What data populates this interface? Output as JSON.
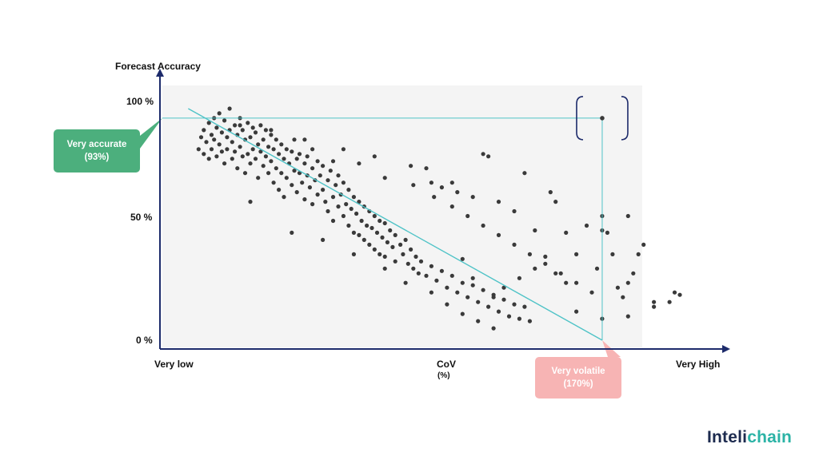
{
  "chart_data": {
    "type": "scatter",
    "title": "",
    "ylabel": "Forecast Accuracy",
    "xlabel": "CoV",
    "xlabel_unit": "(%)",
    "x_tick_labels": [
      "Very low",
      "Very High"
    ],
    "y_tick_labels": [
      "100 %",
      "50 %",
      "0 %"
    ],
    "xlim": [
      0,
      200
    ],
    "ylim": [
      0,
      100
    ],
    "grid": false,
    "trend_line": {
      "from": [
        10,
        97
      ],
      "to": [
        170,
        0
      ]
    },
    "reference_lines": {
      "accuracy": 93,
      "cov": 170
    },
    "highlight_point": {
      "x": 170,
      "y": 93
    },
    "series": [
      {
        "points": [
          [
            14,
            80
          ],
          [
            15,
            85
          ],
          [
            16,
            78
          ],
          [
            16,
            88
          ],
          [
            17,
            83
          ],
          [
            18,
            76
          ],
          [
            18,
            91
          ],
          [
            19,
            86
          ],
          [
            19,
            80
          ],
          [
            20,
            93
          ],
          [
            20,
            84
          ],
          [
            21,
            77
          ],
          [
            21,
            89
          ],
          [
            22,
            82
          ],
          [
            22,
            95
          ],
          [
            23,
            79
          ],
          [
            23,
            87
          ],
          [
            24,
            74
          ],
          [
            24,
            92
          ],
          [
            25,
            85
          ],
          [
            25,
            80
          ],
          [
            26,
            97
          ],
          [
            26,
            88
          ],
          [
            27,
            76
          ],
          [
            27,
            83
          ],
          [
            28,
            90
          ],
          [
            28,
            79
          ],
          [
            29,
            86
          ],
          [
            29,
            72
          ],
          [
            30,
            93
          ],
          [
            30,
            81
          ],
          [
            31,
            77
          ],
          [
            31,
            88
          ],
          [
            32,
            84
          ],
          [
            32,
            70
          ],
          [
            33,
            91
          ],
          [
            33,
            78
          ],
          [
            34,
            85
          ],
          [
            34,
            74
          ],
          [
            35,
            89
          ],
          [
            35,
            80
          ],
          [
            36,
            76
          ],
          [
            36,
            87
          ],
          [
            37,
            82
          ],
          [
            37,
            68
          ],
          [
            38,
            90
          ],
          [
            38,
            79
          ],
          [
            39,
            84
          ],
          [
            39,
            73
          ],
          [
            40,
            88
          ],
          [
            40,
            77
          ],
          [
            41,
            81
          ],
          [
            41,
            70
          ],
          [
            42,
            86
          ],
          [
            42,
            75
          ],
          [
            43,
            80
          ],
          [
            43,
            66
          ],
          [
            44,
            84
          ],
          [
            44,
            72
          ],
          [
            45,
            78
          ],
          [
            45,
            63
          ],
          [
            46,
            82
          ],
          [
            46,
            70
          ],
          [
            47,
            76
          ],
          [
            47,
            60
          ],
          [
            48,
            80
          ],
          [
            48,
            68
          ],
          [
            49,
            74
          ],
          [
            50,
            79
          ],
          [
            50,
            65
          ],
          [
            51,
            71
          ],
          [
            51,
            84
          ],
          [
            52,
            76
          ],
          [
            52,
            62
          ],
          [
            53,
            70
          ],
          [
            53,
            78
          ],
          [
            54,
            66
          ],
          [
            55,
            74
          ],
          [
            55,
            59
          ],
          [
            56,
            69
          ],
          [
            56,
            77
          ],
          [
            57,
            64
          ],
          [
            58,
            72
          ],
          [
            58,
            57
          ],
          [
            59,
            67
          ],
          [
            60,
            75
          ],
          [
            60,
            61
          ],
          [
            61,
            69
          ],
          [
            62,
            63
          ],
          [
            62,
            73
          ],
          [
            63,
            58
          ],
          [
            64,
            67
          ],
          [
            64,
            54
          ],
          [
            65,
            71
          ],
          [
            66,
            60
          ],
          [
            66,
            50
          ],
          [
            67,
            65
          ],
          [
            68,
            56
          ],
          [
            68,
            69
          ],
          [
            69,
            61
          ],
          [
            70,
            52
          ],
          [
            70,
            66
          ],
          [
            71,
            57
          ],
          [
            72,
            63
          ],
          [
            72,
            48
          ],
          [
            73,
            55
          ],
          [
            74,
            60
          ],
          [
            74,
            45
          ],
          [
            75,
            53
          ],
          [
            76,
            58
          ],
          [
            76,
            44
          ],
          [
            77,
            50
          ],
          [
            78,
            56
          ],
          [
            78,
            42
          ],
          [
            79,
            48
          ],
          [
            80,
            54
          ],
          [
            80,
            40
          ],
          [
            81,
            47
          ],
          [
            82,
            52
          ],
          [
            82,
            38
          ],
          [
            83,
            45
          ],
          [
            84,
            50
          ],
          [
            84,
            36
          ],
          [
            85,
            43
          ],
          [
            86,
            49
          ],
          [
            86,
            35
          ],
          [
            87,
            41
          ],
          [
            88,
            46
          ],
          [
            89,
            39
          ],
          [
            90,
            44
          ],
          [
            90,
            33
          ],
          [
            92,
            40
          ],
          [
            93,
            36
          ],
          [
            94,
            42
          ],
          [
            95,
            32
          ],
          [
            96,
            38
          ],
          [
            97,
            30
          ],
          [
            98,
            35
          ],
          [
            99,
            28
          ],
          [
            100,
            33
          ],
          [
            102,
            27
          ],
          [
            104,
            31
          ],
          [
            106,
            25
          ],
          [
            108,
            29
          ],
          [
            110,
            22
          ],
          [
            112,
            27
          ],
          [
            114,
            20
          ],
          [
            116,
            24
          ],
          [
            118,
            18
          ],
          [
            120,
            23
          ],
          [
            122,
            16
          ],
          [
            124,
            21
          ],
          [
            126,
            14
          ],
          [
            128,
            19
          ],
          [
            130,
            12
          ],
          [
            132,
            17
          ],
          [
            134,
            10
          ],
          [
            136,
            15
          ],
          [
            138,
            9
          ],
          [
            140,
            14
          ],
          [
            142,
            8
          ],
          [
            30,
            90
          ],
          [
            42,
            88
          ],
          [
            55,
            84
          ],
          [
            66,
            75
          ],
          [
            76,
            74
          ],
          [
            86,
            68
          ],
          [
            97,
            65
          ],
          [
            105,
            60
          ],
          [
            112,
            56
          ],
          [
            118,
            52
          ],
          [
            124,
            48
          ],
          [
            130,
            44
          ],
          [
            136,
            40
          ],
          [
            142,
            36
          ],
          [
            148,
            32
          ],
          [
            154,
            28
          ],
          [
            160,
            24
          ],
          [
            166,
            20
          ],
          [
            34,
            58
          ],
          [
            50,
            45
          ],
          [
            62,
            42
          ],
          [
            74,
            36
          ],
          [
            86,
            30
          ],
          [
            94,
            24
          ],
          [
            104,
            20
          ],
          [
            110,
            15
          ],
          [
            116,
            11
          ],
          [
            122,
            8
          ],
          [
            128,
            5
          ],
          [
            58,
            80
          ],
          [
            70,
            80
          ],
          [
            82,
            77
          ],
          [
            96,
            73
          ],
          [
            102,
            72
          ],
          [
            108,
            64
          ],
          [
            114,
            62
          ],
          [
            124,
            78
          ],
          [
            126,
            77
          ],
          [
            140,
            70
          ],
          [
            150,
            62
          ],
          [
            152,
            58
          ],
          [
            152,
            28
          ],
          [
            156,
            45
          ],
          [
            156,
            24
          ],
          [
            160,
            36
          ],
          [
            164,
            48
          ],
          [
            168,
            30
          ],
          [
            170,
            52
          ],
          [
            170,
            46
          ],
          [
            172,
            45
          ],
          [
            174,
            36
          ],
          [
            176,
            22
          ],
          [
            178,
            18
          ],
          [
            180,
            52
          ],
          [
            180,
            24
          ],
          [
            182,
            28
          ],
          [
            184,
            36
          ],
          [
            186,
            40
          ],
          [
            190,
            16
          ],
          [
            196,
            16
          ],
          [
            198,
            20
          ],
          [
            200,
            19
          ],
          [
            148,
            35
          ],
          [
            144,
            30
          ],
          [
            138,
            26
          ],
          [
            132,
            22
          ],
          [
            128,
            18
          ],
          [
            120,
            26
          ],
          [
            116,
            34
          ],
          [
            160,
            12
          ],
          [
            170,
            9
          ],
          [
            180,
            10
          ],
          [
            190,
            14
          ],
          [
            144,
            46
          ],
          [
            136,
            54
          ],
          [
            130,
            58
          ],
          [
            120,
            60
          ],
          [
            112,
            66
          ],
          [
            104,
            66
          ]
        ]
      }
    ]
  },
  "callouts": {
    "accurate_line1": "Very accurate",
    "accurate_line2": "(93%)",
    "volatile_line1": "Very volatile",
    "volatile_line2": "(170%)"
  },
  "brand": {
    "prefix": "Inteli",
    "suffix": "chain"
  },
  "colors": {
    "axis": "#1d2b6b",
    "trend": "#4fc3c7",
    "point": "#3a3a3a",
    "plot_bg": "#f4f4f4",
    "accurate": "#4caf7d",
    "volatile": "#f7b4b4",
    "brand_dark": "#1d2b4f",
    "brand_accent": "#2bb3a6"
  }
}
